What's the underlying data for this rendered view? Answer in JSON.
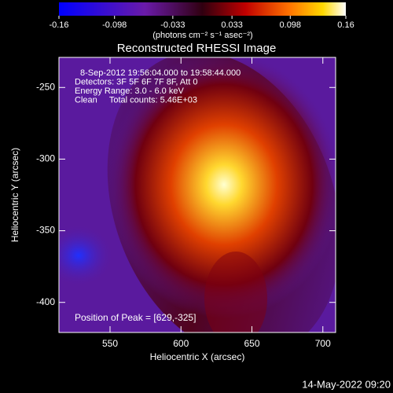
{
  "chart_data": {
    "type": "heatmap",
    "title": "Reconstructed RHESSI Image",
    "colorbar": {
      "label": "(photons cm⁻² s⁻¹ asec⁻²)",
      "lim": [
        -0.16,
        0.16
      ],
      "ticks": [
        -0.16,
        -0.098,
        -0.033,
        0.033,
        0.098,
        0.16
      ]
    },
    "xlabel": "Heliocentric X (arcsec)",
    "ylabel": "Heliocentric Y (arcsec)",
    "xlim": [
      514,
      709
    ],
    "ylim": [
      -421,
      -229
    ],
    "xticks": [
      550,
      600,
      650,
      700
    ],
    "yticks": [
      -250,
      -300,
      -350,
      -400
    ],
    "annotations": [
      "8-Sep-2012 19:56:04.000 to 19:58:44.000",
      "Detectors: 3F 5F 6F 7F 8F, Att 0",
      "Energy Range: 3.0 - 6.0 keV",
      "Clean     Total counts: 5.46E+03"
    ],
    "peak_label": "Position of Peak = [629,-325]"
  },
  "footer": "14-May-2022 09:20"
}
